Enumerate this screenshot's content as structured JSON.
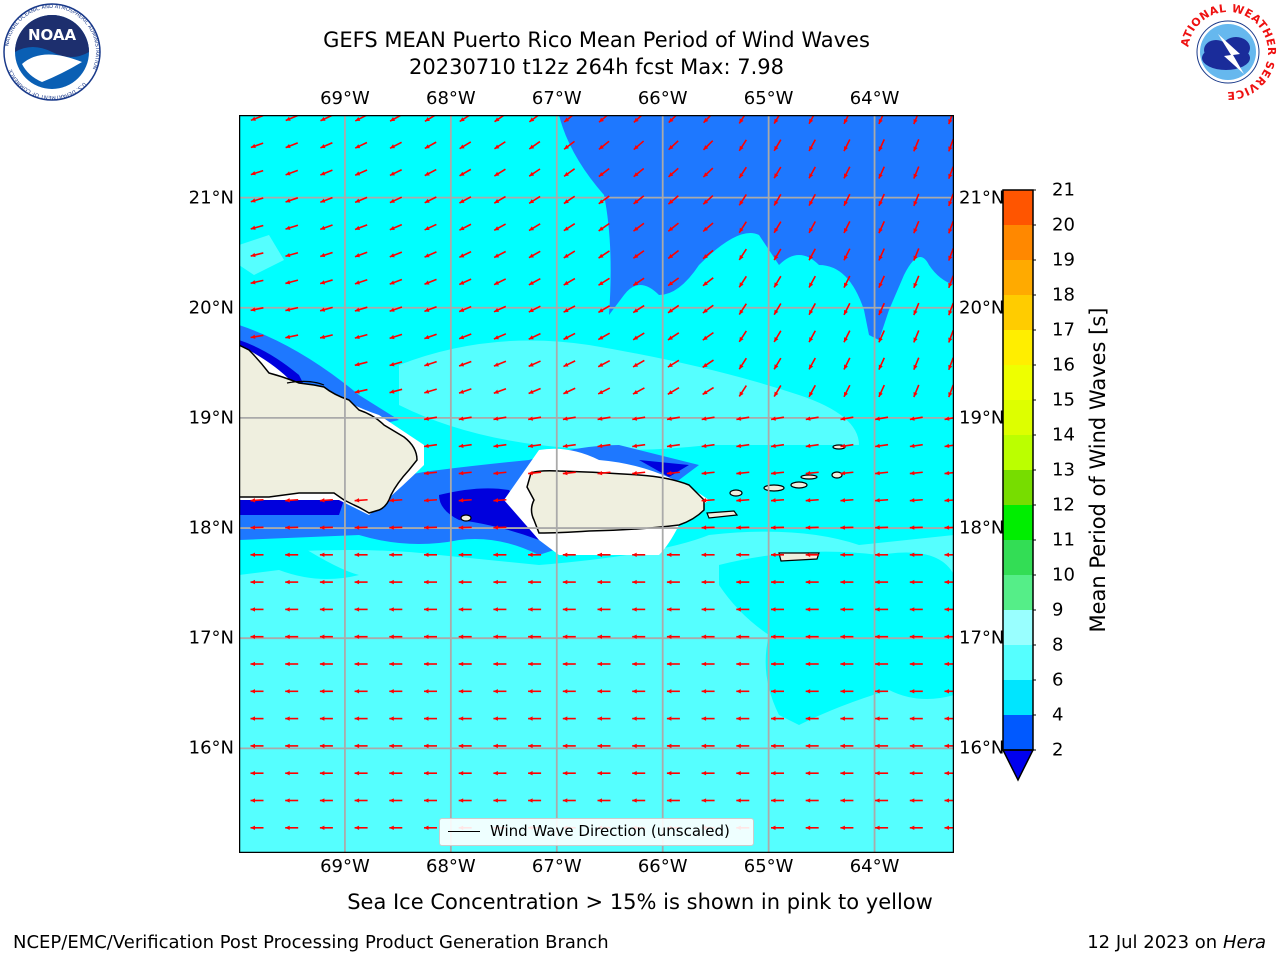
{
  "title": {
    "line1": "GEFS MEAN Puerto Rico Mean Period of Wind Waves",
    "line2": "20230710 t12z 264h fcst   Max: 7.98"
  },
  "logos": {
    "left": "NOAA",
    "left_ring": "NATIONAL OCEANIC AND ATMOSPHERIC ADMINISTRATION",
    "left_ring_bottom": "U.S. DEPARTMENT OF COMMERCE",
    "right_ring": "NATIONAL WEATHER SERVICE"
  },
  "axes": {
    "lon_labels": [
      "69°W",
      "68°W",
      "67°W",
      "66°W",
      "65°W",
      "64°W"
    ],
    "lat_labels": [
      "21°N",
      "20°N",
      "19°N",
      "18°N",
      "17°N",
      "16°N"
    ],
    "lon_values": [
      -69,
      -68,
      -67,
      -66,
      -65,
      -64
    ],
    "lat_values": [
      21,
      20,
      19,
      18,
      17,
      16
    ],
    "lon_range": [
      -70,
      -63.25
    ],
    "lat_range": [
      15.05,
      21.75
    ]
  },
  "colorbar": {
    "label": "Mean Period of Wind Waves [s]",
    "ticks": [
      "21",
      "20",
      "19",
      "18",
      "17",
      "16",
      "15",
      "14",
      "13",
      "12",
      "11",
      "10",
      "9",
      "8",
      "6",
      "4",
      "2"
    ],
    "levels": [
      2,
      4,
      6,
      8,
      9,
      10,
      11,
      12,
      13,
      14,
      15,
      16,
      17,
      18,
      19,
      20,
      21
    ],
    "colors": [
      "#0059ff",
      "#00e5ff",
      "#55ffff",
      "#99ffff",
      "#55ee88",
      "#33dd55",
      "#00ee00",
      "#77dd00",
      "#bbff00",
      "#ddff00",
      "#eeff00",
      "#ffee00",
      "#ffcc00",
      "#ffaa00",
      "#ff8800",
      "#ff5500",
      "#ff2200"
    ],
    "under_color": "#0000ee"
  },
  "map_colors": {
    "ocean_4_6": "#00ffff",
    "ocean_6_8": "#55ffff",
    "ocean_2_4": "#1e78ff",
    "ocean_lt2": "#0000dd",
    "land": "#efefdf",
    "arrows": "#ff0000",
    "grid": "#aaaaaa"
  },
  "legend": {
    "label": "Wind Wave Direction (unscaled)"
  },
  "note": "Sea Ice Concentration > 15% is shown in pink to yellow",
  "footer": {
    "left": "NCEP/EMC/Verification Post Processing Product Generation Branch",
    "right_date": "12 Jul 2023 on",
    "right_host": "Hera"
  }
}
